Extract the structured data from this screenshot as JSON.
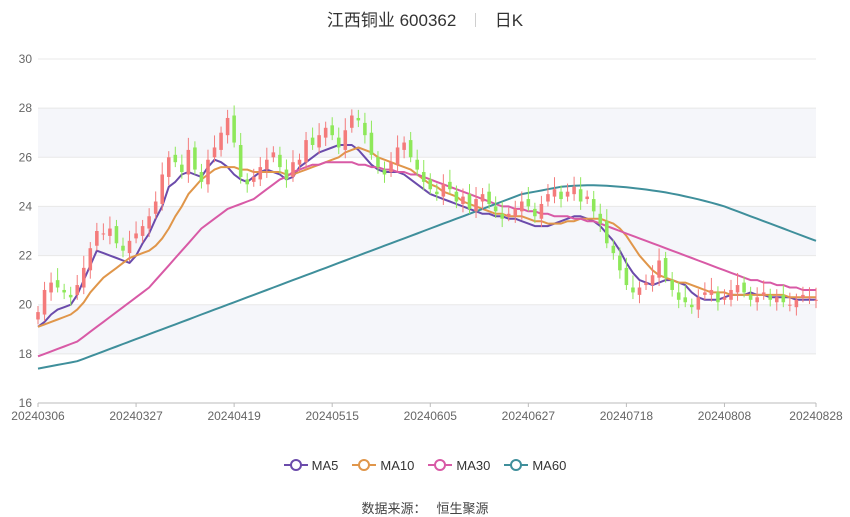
{
  "header": {
    "stock_title": "江西铜业 600362",
    "period_tab": "日K"
  },
  "source": {
    "label": "数据来源：",
    "value": "恒生聚源"
  },
  "colors": {
    "up": "#f47b7b",
    "down": "#8ee85a",
    "grid": "#e8e8e8",
    "band": "#f5f6fa",
    "axis_text": "#666666"
  },
  "chart_data": {
    "type": "candlestick",
    "ylim": [
      16,
      30
    ],
    "yticks": [
      16,
      18,
      20,
      22,
      24,
      26,
      28,
      30
    ],
    "xtick_labels": [
      "20240306",
      "20240327",
      "20240419",
      "20240515",
      "20240605",
      "20240627",
      "20240718",
      "20240808",
      "20240828"
    ],
    "xtick_index": [
      0,
      15,
      30,
      45,
      60,
      75,
      90,
      105,
      119
    ],
    "trading_days": 120,
    "candles_close": [
      19.7,
      20.6,
      20.9,
      20.7,
      20.5,
      20.3,
      20.8,
      21.5,
      22.3,
      23.0,
      22.9,
      23.1,
      22.5,
      22.2,
      22.6,
      22.9,
      23.2,
      23.6,
      24.2,
      25.3,
      26.0,
      25.8,
      25.4,
      26.3,
      25.5,
      25.0,
      25.9,
      26.4,
      27.0,
      27.6,
      26.6,
      25.2,
      24.9,
      25.2,
      25.6,
      25.9,
      26.2,
      25.6,
      25.1,
      25.8,
      25.9,
      26.7,
      26.5,
      26.9,
      27.2,
      26.9,
      26.4,
      27.1,
      27.7,
      27.5,
      26.9,
      26.1,
      25.6,
      25.3,
      25.8,
      26.4,
      26.6,
      26.0,
      25.5,
      25.0,
      24.7,
      24.5,
      24.9,
      24.7,
      24.2,
      24.4,
      23.9,
      24.3,
      24.5,
      24.1,
      23.8,
      23.5,
      23.7,
      23.9,
      24.2,
      24.0,
      23.6,
      24.1,
      24.5,
      24.7,
      24.3,
      24.6,
      24.8,
      24.2,
      24.4,
      23.8,
      23.3,
      22.5,
      22.1,
      21.4,
      20.8,
      20.5,
      20.7,
      20.9,
      21.2,
      21.8,
      21.1,
      20.6,
      20.2,
      20.1,
      19.9,
      20.3,
      20.5,
      20.6,
      20.1,
      20.3,
      20.6,
      20.8,
      20.5,
      20.2,
      20.3,
      20.5,
      20.2,
      20.3,
      20.1,
      20.0,
      20.2,
      20.4,
      20.3,
      20.2
    ],
    "series": [
      {
        "name": "MA5",
        "color": "#6b4bab",
        "values": [
          19.1,
          19.3,
          19.6,
          19.8,
          19.9,
          20.0,
          20.4,
          21.0,
          21.6,
          22.2,
          22.1,
          22.0,
          21.9,
          21.8,
          21.7,
          22.0,
          22.5,
          22.9,
          23.5,
          24.0,
          24.8,
          25.0,
          25.3,
          25.4,
          25.3,
          25.2,
          25.6,
          25.9,
          25.8,
          25.6,
          25.3,
          25.1,
          25.0,
          25.2,
          25.4,
          25.5,
          25.4,
          25.3,
          25.1,
          25.2,
          25.6,
          25.8,
          26.0,
          26.2,
          26.3,
          26.4,
          26.5,
          26.5,
          26.5,
          26.3,
          26.0,
          25.7,
          25.5,
          25.4,
          25.4,
          25.4,
          25.3,
          25.1,
          24.9,
          24.7,
          24.5,
          24.4,
          24.3,
          24.2,
          24.1,
          24.0,
          23.9,
          23.8,
          23.7,
          23.7,
          23.6,
          23.6,
          23.5,
          23.5,
          23.4,
          23.3,
          23.2,
          23.2,
          23.2,
          23.3,
          23.4,
          23.5,
          23.6,
          23.6,
          23.5,
          23.4,
          23.2,
          22.9,
          22.6,
          22.2,
          21.7,
          21.3,
          21.0,
          20.9,
          20.8,
          20.9,
          21.0,
          21.0,
          20.9,
          20.8,
          20.5,
          20.3,
          20.2,
          20.2,
          20.2,
          20.3,
          20.4,
          20.4,
          20.4,
          20.5,
          20.4,
          20.4,
          20.3,
          20.3,
          20.3,
          20.3,
          20.2,
          20.2,
          20.2,
          20.2
        ]
      },
      {
        "name": "MA10",
        "color": "#e0964a",
        "values": [
          19.1,
          19.2,
          19.3,
          19.4,
          19.5,
          19.6,
          19.8,
          20.1,
          20.5,
          20.8,
          21.1,
          21.3,
          21.5,
          21.7,
          21.9,
          22.0,
          22.1,
          22.2,
          22.4,
          22.7,
          23.1,
          23.6,
          24.0,
          24.5,
          24.8,
          25.1,
          25.3,
          25.5,
          25.6,
          25.6,
          25.6,
          25.5,
          25.5,
          25.4,
          25.4,
          25.4,
          25.4,
          25.4,
          25.3,
          25.3,
          25.4,
          25.5,
          25.6,
          25.7,
          25.8,
          25.9,
          26.0,
          26.2,
          26.3,
          26.4,
          26.3,
          26.2,
          26.0,
          25.9,
          25.8,
          25.7,
          25.6,
          25.5,
          25.3,
          25.1,
          24.9,
          24.8,
          24.6,
          24.5,
          24.4,
          24.2,
          24.1,
          24.0,
          23.9,
          23.8,
          23.7,
          23.7,
          23.6,
          23.6,
          23.6,
          23.5,
          23.4,
          23.4,
          23.3,
          23.3,
          23.3,
          23.4,
          23.4,
          23.5,
          23.5,
          23.5,
          23.5,
          23.4,
          23.3,
          23.1,
          22.8,
          22.4,
          22.0,
          21.7,
          21.4,
          21.2,
          21.1,
          21.0,
          20.9,
          20.9,
          20.8,
          20.7,
          20.6,
          20.5,
          20.5,
          20.5,
          20.4,
          20.4,
          20.4,
          20.4,
          20.4,
          20.4,
          20.4,
          20.4,
          20.4,
          20.3,
          20.3,
          20.3,
          20.3,
          20.3
        ]
      },
      {
        "name": "MA30",
        "color": "#d85aa6",
        "values": [
          17.9,
          18.0,
          18.1,
          18.2,
          18.3,
          18.4,
          18.5,
          18.7,
          18.9,
          19.1,
          19.3,
          19.5,
          19.7,
          19.9,
          20.1,
          20.3,
          20.5,
          20.7,
          21.0,
          21.3,
          21.6,
          21.9,
          22.2,
          22.5,
          22.8,
          23.1,
          23.3,
          23.5,
          23.7,
          23.9,
          24.0,
          24.1,
          24.2,
          24.3,
          24.5,
          24.7,
          24.9,
          25.1,
          25.2,
          25.4,
          25.5,
          25.6,
          25.7,
          25.7,
          25.8,
          25.8,
          25.8,
          25.8,
          25.8,
          25.7,
          25.7,
          25.6,
          25.6,
          25.5,
          25.5,
          25.4,
          25.4,
          25.3,
          25.3,
          25.2,
          25.1,
          25.0,
          24.9,
          24.8,
          24.7,
          24.6,
          24.5,
          24.4,
          24.3,
          24.2,
          24.1,
          24.0,
          24.0,
          23.9,
          23.9,
          23.8,
          23.8,
          23.7,
          23.7,
          23.6,
          23.6,
          23.6,
          23.5,
          23.5,
          23.4,
          23.4,
          23.3,
          23.2,
          23.1,
          23.0,
          22.9,
          22.8,
          22.7,
          22.6,
          22.5,
          22.4,
          22.3,
          22.2,
          22.1,
          22.0,
          21.9,
          21.8,
          21.7,
          21.6,
          21.5,
          21.4,
          21.3,
          21.2,
          21.1,
          21.0,
          21.0,
          20.9,
          20.9,
          20.8,
          20.8,
          20.7,
          20.7,
          20.6,
          20.6,
          20.6
        ]
      },
      {
        "name": "MA60",
        "color": "#3f8f9b",
        "values": [
          17.4,
          17.45,
          17.5,
          17.55,
          17.6,
          17.65,
          17.7,
          17.8,
          17.9,
          18.0,
          18.1,
          18.2,
          18.3,
          18.4,
          18.5,
          18.6,
          18.7,
          18.8,
          18.9,
          19.0,
          19.1,
          19.2,
          19.3,
          19.4,
          19.5,
          19.6,
          19.7,
          19.8,
          19.9,
          20.0,
          20.1,
          20.2,
          20.3,
          20.4,
          20.5,
          20.6,
          20.7,
          20.8,
          20.9,
          21.0,
          21.1,
          21.2,
          21.3,
          21.4,
          21.5,
          21.6,
          21.7,
          21.8,
          21.9,
          22.0,
          22.1,
          22.2,
          22.3,
          22.4,
          22.5,
          22.6,
          22.7,
          22.8,
          22.9,
          23.0,
          23.1,
          23.2,
          23.3,
          23.4,
          23.5,
          23.6,
          23.7,
          23.8,
          23.9,
          24.0,
          24.1,
          24.2,
          24.3,
          24.4,
          24.5,
          24.55,
          24.6,
          24.65,
          24.7,
          24.75,
          24.8,
          24.82,
          24.84,
          24.85,
          24.86,
          24.86,
          24.85,
          24.84,
          24.82,
          24.8,
          24.78,
          24.75,
          24.72,
          24.69,
          24.65,
          24.61,
          24.57,
          24.52,
          24.47,
          24.41,
          24.35,
          24.29,
          24.22,
          24.15,
          24.08,
          24.0,
          23.9,
          23.8,
          23.7,
          23.6,
          23.5,
          23.4,
          23.3,
          23.2,
          23.1,
          23.0,
          22.9,
          22.8,
          22.7,
          22.6
        ]
      }
    ],
    "legend_position": "bottom"
  }
}
